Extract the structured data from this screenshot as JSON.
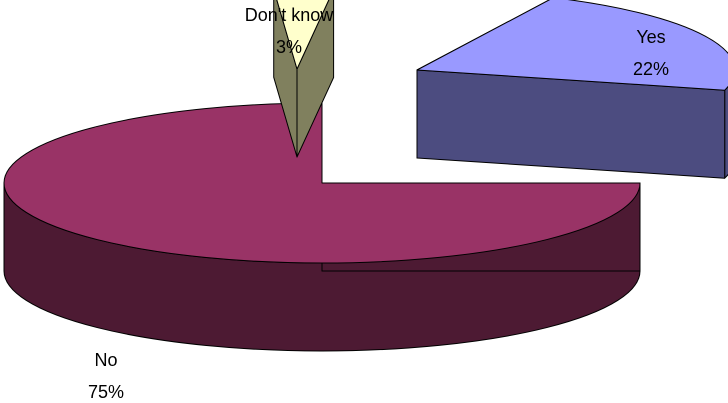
{
  "chart_data": {
    "type": "pie",
    "style": "3d-exploded",
    "slices": [
      {
        "label": "Yes",
        "value": 22,
        "value_label": "22%",
        "top_color": "#9999ff",
        "side_color": "#4c4c80"
      },
      {
        "label": "No",
        "value": 75,
        "value_label": "75%",
        "top_color": "#993366",
        "side_color": "#4d1a33"
      },
      {
        "label": "Don't know",
        "value": 3,
        "value_label": "3%",
        "top_color": "#ffffcc",
        "side_color": "#80805e"
      }
    ],
    "title": "",
    "legend": "none"
  }
}
